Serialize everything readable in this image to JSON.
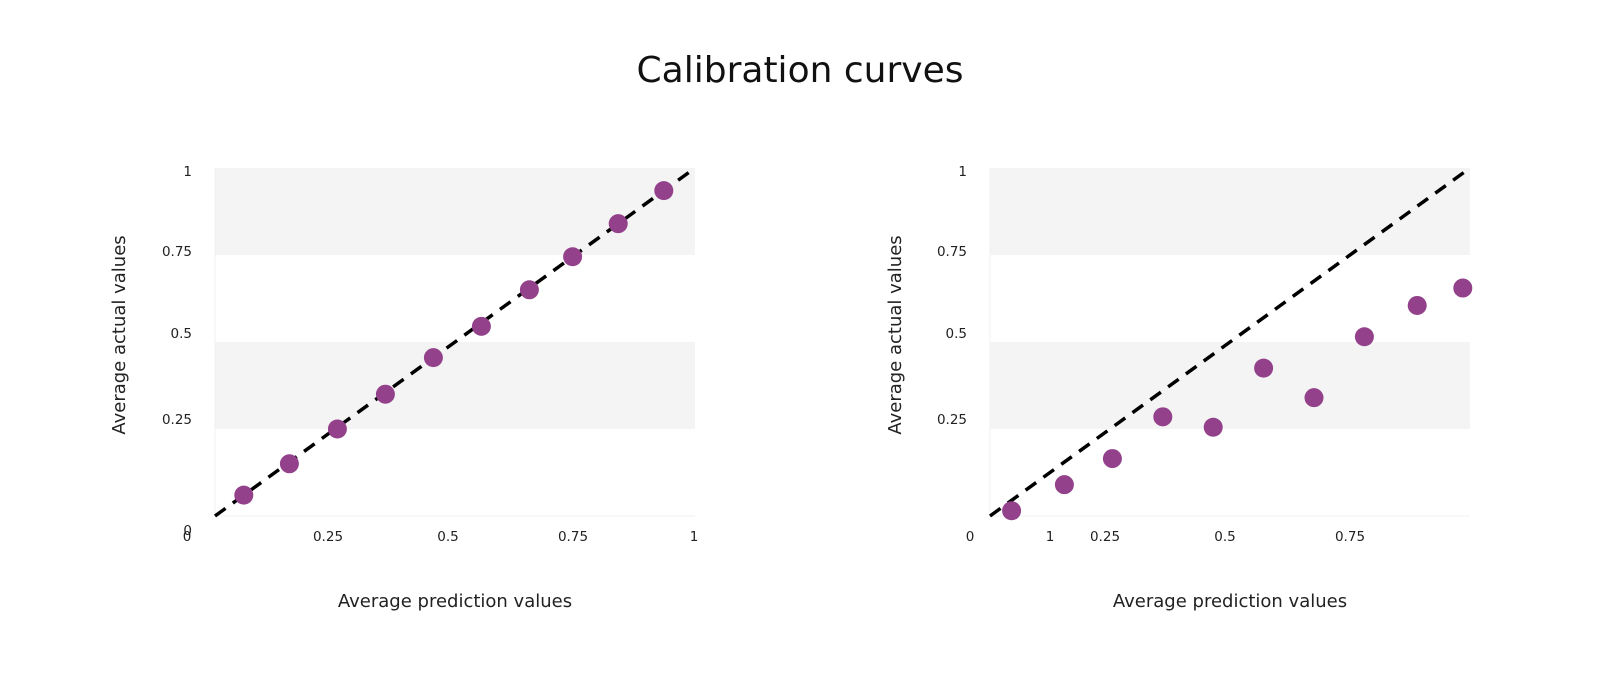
{
  "title": "Calibration curves",
  "colors": {
    "point": "#92418a",
    "band": "#f4f4f4",
    "diagonal": "#000000"
  },
  "chart_data": [
    {
      "type": "scatter",
      "xlabel": "Average prediction values",
      "ylabel": "Average actual values",
      "xlim": [
        0,
        1
      ],
      "ylim": [
        0,
        1
      ],
      "x_tick_labels": [
        "0",
        "0.25",
        "0.5",
        "0.75",
        "1"
      ],
      "y_tick_labels": [
        "0",
        "0.25",
        "0.5",
        "0.75",
        "1"
      ],
      "reference_line": "y = x",
      "x": [
        0.06,
        0.155,
        0.255,
        0.355,
        0.455,
        0.555,
        0.655,
        0.745,
        0.84,
        0.935
      ],
      "y": [
        0.06,
        0.15,
        0.25,
        0.35,
        0.455,
        0.545,
        0.65,
        0.745,
        0.84,
        0.935
      ]
    },
    {
      "type": "scatter",
      "xlabel": "Average prediction values",
      "ylabel": "Average actual values",
      "xlim": [
        0,
        1
      ],
      "ylim": [
        0,
        1
      ],
      "x_tick_labels": [
        "0",
        "1",
        "0.25",
        "0.5",
        "0.75"
      ],
      "y_tick_labels": [
        "0.25",
        "0.5",
        "0.75",
        "1"
      ],
      "reference_line": "y = x",
      "x": [
        0.045,
        0.155,
        0.255,
        0.36,
        0.465,
        0.57,
        0.675,
        0.78,
        0.89,
        0.985
      ],
      "y": [
        0.015,
        0.09,
        0.165,
        0.285,
        0.255,
        0.425,
        0.34,
        0.515,
        0.605,
        0.655
      ]
    }
  ]
}
